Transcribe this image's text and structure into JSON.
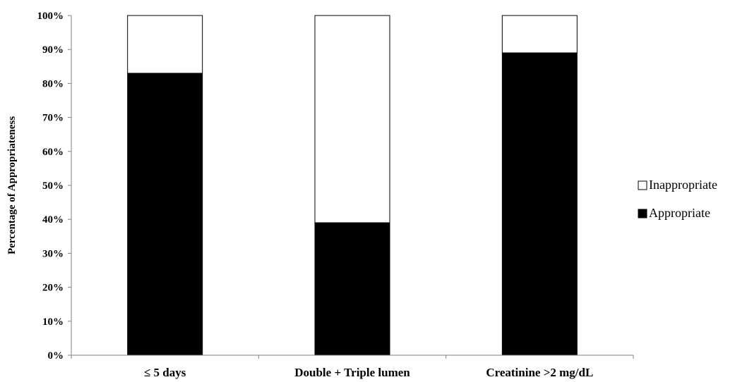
{
  "chart_data": {
    "type": "bar",
    "stacked": true,
    "percent_stacked": true,
    "title": "",
    "xlabel": "",
    "ylabel": "Percentage of Appropriateness",
    "ylim": [
      0,
      100
    ],
    "y_ticks": [
      "0%",
      "10%",
      "20%",
      "30%",
      "40%",
      "50%",
      "60%",
      "70%",
      "80%",
      "90%",
      "100%"
    ],
    "grid": false,
    "legend_position": "right",
    "categories": [
      "≤ 5 days",
      "Double + Triple lumen",
      "Creatinine >2 mg/dL"
    ],
    "series": [
      {
        "name": "Appropriate",
        "values": [
          83,
          39,
          89
        ],
        "color": "#000000"
      },
      {
        "name": "Inappropriate",
        "values": [
          17,
          61,
          11
        ],
        "color": "#ffffff"
      }
    ],
    "legend_order": [
      "Inappropriate",
      "Appropriate"
    ]
  }
}
